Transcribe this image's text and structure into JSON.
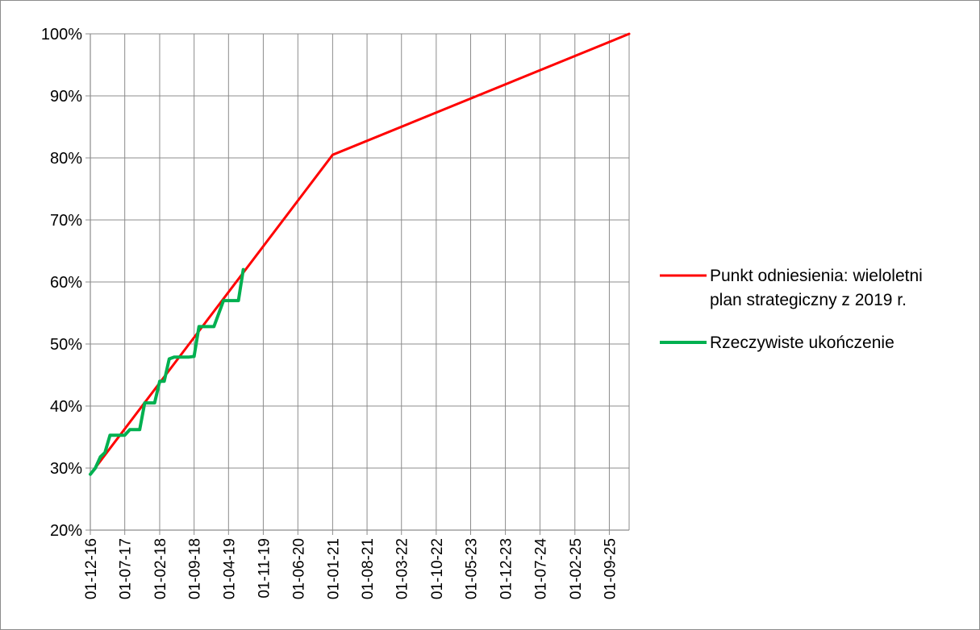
{
  "chart_data": {
    "type": "line",
    "title": "",
    "xlabel": "",
    "ylabel": "",
    "x_axis": {
      "type": "date",
      "min": "2016-12-01",
      "max": "2026-01-01",
      "tick_labels": [
        "01-12-16",
        "01-07-17",
        "01-02-18",
        "01-09-18",
        "01-04-19",
        "01-11-19",
        "01-06-20",
        "01-01-21",
        "01-08-21",
        "01-03-22",
        "01-10-22",
        "01-05-23",
        "01-12-23",
        "01-07-24",
        "01-02-25",
        "01-09-25"
      ],
      "tick_dates": [
        "2016-12-01",
        "2017-07-01",
        "2018-02-01",
        "2018-09-01",
        "2019-04-01",
        "2019-11-01",
        "2020-06-01",
        "2021-01-01",
        "2021-08-01",
        "2022-03-01",
        "2022-10-01",
        "2023-05-01",
        "2023-12-01",
        "2024-07-01",
        "2025-02-01",
        "2025-09-01"
      ]
    },
    "y_axis": {
      "min": 0.2,
      "max": 1.0,
      "tick_values": [
        0.2,
        0.3,
        0.4,
        0.5,
        0.6,
        0.7,
        0.8,
        0.9,
        1.0
      ],
      "tick_labels": [
        "20%",
        "30%",
        "40%",
        "50%",
        "60%",
        "70%",
        "80%",
        "90%",
        "100%"
      ]
    },
    "grid": true,
    "legend_position": "right",
    "series": [
      {
        "name": "Punkt odniesienia: wieloletni plan strategiczny z 2019 r.",
        "legend_lines": [
          "Punkt odniesienia: wieloletni",
          "plan strategiczny z 2019 r."
        ],
        "color": "#ff0000",
        "points": [
          {
            "x": "2016-12-01",
            "y": 0.29
          },
          {
            "x": "2021-01-01",
            "y": 0.805
          },
          {
            "x": "2026-01-01",
            "y": 1.0
          }
        ]
      },
      {
        "name": "Rzeczywiste ukończenie",
        "legend_lines": [
          "Rzeczywiste ukończenie"
        ],
        "color": "#00b050",
        "points": [
          {
            "x": "2016-12-01",
            "y": 0.29
          },
          {
            "x": "2017-01-01",
            "y": 0.3
          },
          {
            "x": "2017-02-01",
            "y": 0.318
          },
          {
            "x": "2017-03-01",
            "y": 0.325
          },
          {
            "x": "2017-04-01",
            "y": 0.353
          },
          {
            "x": "2017-07-01",
            "y": 0.353
          },
          {
            "x": "2017-08-01",
            "y": 0.362
          },
          {
            "x": "2017-10-01",
            "y": 0.362
          },
          {
            "x": "2017-11-01",
            "y": 0.405
          },
          {
            "x": "2018-01-01",
            "y": 0.405
          },
          {
            "x": "2018-02-01",
            "y": 0.44
          },
          {
            "x": "2018-03-01",
            "y": 0.44
          },
          {
            "x": "2018-04-01",
            "y": 0.476
          },
          {
            "x": "2018-05-01",
            "y": 0.479
          },
          {
            "x": "2018-08-01",
            "y": 0.479
          },
          {
            "x": "2018-09-01",
            "y": 0.48
          },
          {
            "x": "2018-10-01",
            "y": 0.528
          },
          {
            "x": "2019-01-01",
            "y": 0.528
          },
          {
            "x": "2019-03-01",
            "y": 0.57
          },
          {
            "x": "2019-06-01",
            "y": 0.57
          },
          {
            "x": "2019-07-01",
            "y": 0.62
          }
        ]
      }
    ]
  }
}
